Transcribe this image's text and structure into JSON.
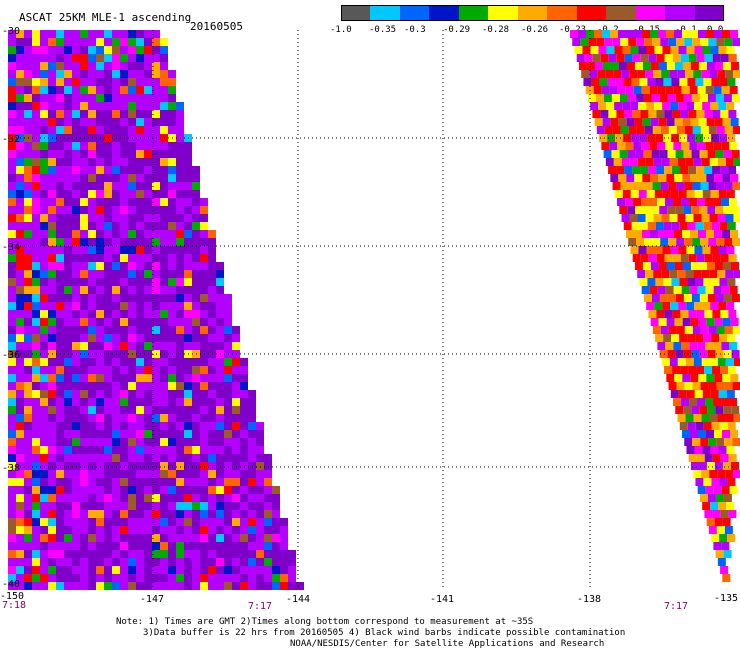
{
  "title": "ASCAT 25KM MLE-1 ascending",
  "date": "20160505",
  "colorbar": {
    "colors": [
      "#585858",
      "#00c8ff",
      "#0064ff",
      "#0014c8",
      "#00aa00",
      "#ffff00",
      "#ffaa00",
      "#ff6400",
      "#ff0000",
      "#9b5a2a",
      "#ff00ff",
      "#b400ff",
      "#7f00c8"
    ],
    "labels": [
      "-1.0",
      "-0.35",
      "-0.3",
      "-0.29",
      "-0.28",
      "-0.26",
      "-0.23",
      "-0.2",
      "-0.15",
      "-0.1",
      "0.0"
    ]
  },
  "axes": {
    "x_ticks": [
      "-150",
      "-147",
      "-144",
      "-141",
      "-138",
      "-135"
    ],
    "y_ticks": [
      "-30",
      "-32",
      "-34",
      "-36",
      "-38",
      "-40"
    ]
  },
  "times": [
    "7:18",
    "7:17",
    "7:17"
  ],
  "notes": [
    "Note: 1) Times are GMT 2)Times along bottom correspond to measurement at ~35S",
    "3)Data buffer is 22 hrs from 20160505 4) Black wind barbs indicate possible contamination",
    "NOAA/NESDIS/Center for Satellite Applications and Research"
  ]
}
